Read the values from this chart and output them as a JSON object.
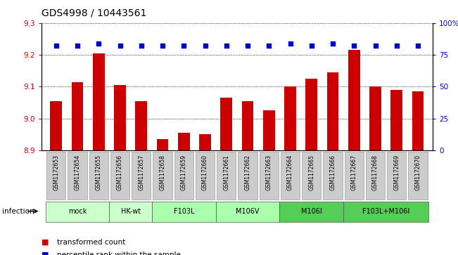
{
  "title": "GDS4998 / 10443561",
  "samples": [
    "GSM1172653",
    "GSM1172654",
    "GSM1172655",
    "GSM1172656",
    "GSM1172657",
    "GSM1172658",
    "GSM1172659",
    "GSM1172660",
    "GSM1172661",
    "GSM1172662",
    "GSM1172663",
    "GSM1172664",
    "GSM1172665",
    "GSM1172666",
    "GSM1172667",
    "GSM1172668",
    "GSM1172669",
    "GSM1172670"
  ],
  "bar_values": [
    9.055,
    9.115,
    9.205,
    9.105,
    9.055,
    8.935,
    8.955,
    8.95,
    9.065,
    9.055,
    9.025,
    9.1,
    9.125,
    9.145,
    9.215,
    9.1,
    9.09,
    9.085
  ],
  "percentile_values": [
    82,
    82,
    84,
    82,
    82,
    82,
    82,
    82,
    82,
    82,
    82,
    84,
    82,
    84,
    82,
    82,
    82,
    82
  ],
  "bar_color": "#cc0000",
  "percentile_color": "#0000cc",
  "ylim_left": [
    8.9,
    9.3
  ],
  "ylim_right": [
    0,
    100
  ],
  "yticks_left": [
    8.9,
    9.0,
    9.1,
    9.2,
    9.3
  ],
  "yticks_right": [
    0,
    25,
    50,
    75,
    100
  ],
  "ytick_labels_right": [
    "0",
    "25",
    "50",
    "75",
    "100%"
  ],
  "groups_def": [
    {
      "label": "mock",
      "indices": [
        0,
        1,
        2
      ],
      "color": "#ccffcc"
    },
    {
      "label": "HK-wt",
      "indices": [
        3,
        4
      ],
      "color": "#ccffcc"
    },
    {
      "label": "F103L",
      "indices": [
        5,
        6,
        7
      ],
      "color": "#aaffaa"
    },
    {
      "label": "M106V",
      "indices": [
        8,
        9,
        10
      ],
      "color": "#aaffaa"
    },
    {
      "label": "M106I",
      "indices": [
        11,
        12,
        13
      ],
      "color": "#55cc55"
    },
    {
      "label": "F103L+M106I",
      "indices": [
        14,
        15,
        16,
        17
      ],
      "color": "#55cc55"
    }
  ],
  "infection_label": "infection",
  "legend_bar_label": "transformed count",
  "legend_dot_label": "percentile rank within the sample",
  "xtick_bg_color": "#cccccc",
  "title_fontsize": 10,
  "tick_fontsize": 7.5,
  "bar_width": 0.55
}
